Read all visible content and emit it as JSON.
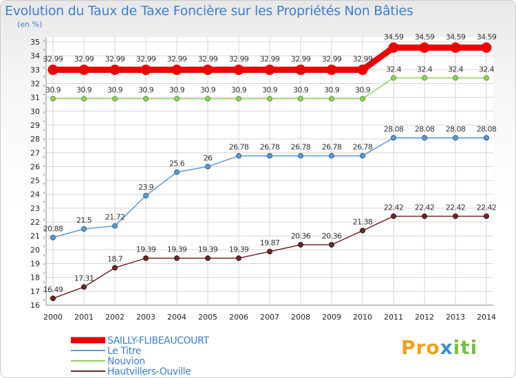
{
  "chart_data": {
    "type": "line",
    "title": "Evolution du Taux de Taxe Foncière sur les Propriétés Non Bâties",
    "ylabel": "(en %)",
    "xlabel": "",
    "x": [
      "2000",
      "2001",
      "2002",
      "2003",
      "2004",
      "2005",
      "2006",
      "2007",
      "2008",
      "2009",
      "2010",
      "2011",
      "2012",
      "2013",
      "2014"
    ],
    "yticks": [
      16,
      17,
      18,
      19,
      20,
      21,
      22,
      23,
      24,
      25,
      26,
      27,
      28,
      29,
      30,
      31,
      32,
      33,
      34,
      35
    ],
    "ylim": [
      16,
      35
    ],
    "grid": true,
    "legend": "bottom-left",
    "series": [
      {
        "name": "SAILLY-FLIBEAUCOURT",
        "color": "#ee0000",
        "values": [
          32.99,
          32.99,
          32.99,
          32.99,
          32.99,
          32.99,
          32.99,
          32.99,
          32.99,
          32.99,
          32.99,
          34.59,
          34.59,
          34.59,
          34.59
        ],
        "labels": [
          "32.99",
          "32.99",
          "32.99",
          "32.99",
          "32.99",
          "32.99",
          "32.99",
          "32.99",
          "32.99",
          "32.99",
          "32.99",
          "34.59",
          "34.59",
          "34.59",
          "34.59"
        ]
      },
      {
        "name": "Le Titre",
        "color": "#5b9bd5",
        "values": [
          20.88,
          21.5,
          21.72,
          23.9,
          25.6,
          26,
          26.78,
          26.78,
          26.78,
          26.78,
          26.78,
          28.08,
          28.08,
          28.08,
          28.08
        ],
        "labels": [
          "20.88",
          "21.5",
          "21.72",
          "23.9",
          "25.6",
          "26",
          "26.78",
          "26.78",
          "26.78",
          "26.78",
          "26.78",
          "28.08",
          "28.08",
          "28.08",
          "28.08"
        ]
      },
      {
        "name": "Nouvion",
        "color": "#8fd15a",
        "values": [
          30.9,
          30.9,
          30.9,
          30.9,
          30.9,
          30.9,
          30.9,
          30.9,
          30.9,
          30.9,
          30.9,
          32.4,
          32.4,
          32.4,
          32.4
        ],
        "labels": [
          "30.9",
          "30.9",
          "30.9",
          "30.9",
          "30.9",
          "30.9",
          "30.9",
          "30.9",
          "30.9",
          "30.9",
          "30.9",
          "32.4",
          "32.4",
          "32.4",
          "32.4"
        ]
      },
      {
        "name": "Hautvillers-Ouville",
        "color": "#6b2a2a",
        "values": [
          16.49,
          17.31,
          18.7,
          19.39,
          19.39,
          19.39,
          19.39,
          19.87,
          20.36,
          20.36,
          21.38,
          22.42,
          22.42,
          22.42,
          22.42
        ],
        "labels": [
          "16.49",
          "17.31",
          "18.7",
          "19.39",
          "19.39",
          "19.39",
          "19.39",
          "19.87",
          "20.36",
          "20.36",
          "21.38",
          "22.42",
          "22.42",
          "22.42",
          "22.42"
        ]
      }
    ]
  },
  "logo": {
    "part1": "Pro",
    "part2": "x",
    "part3": "iti"
  }
}
